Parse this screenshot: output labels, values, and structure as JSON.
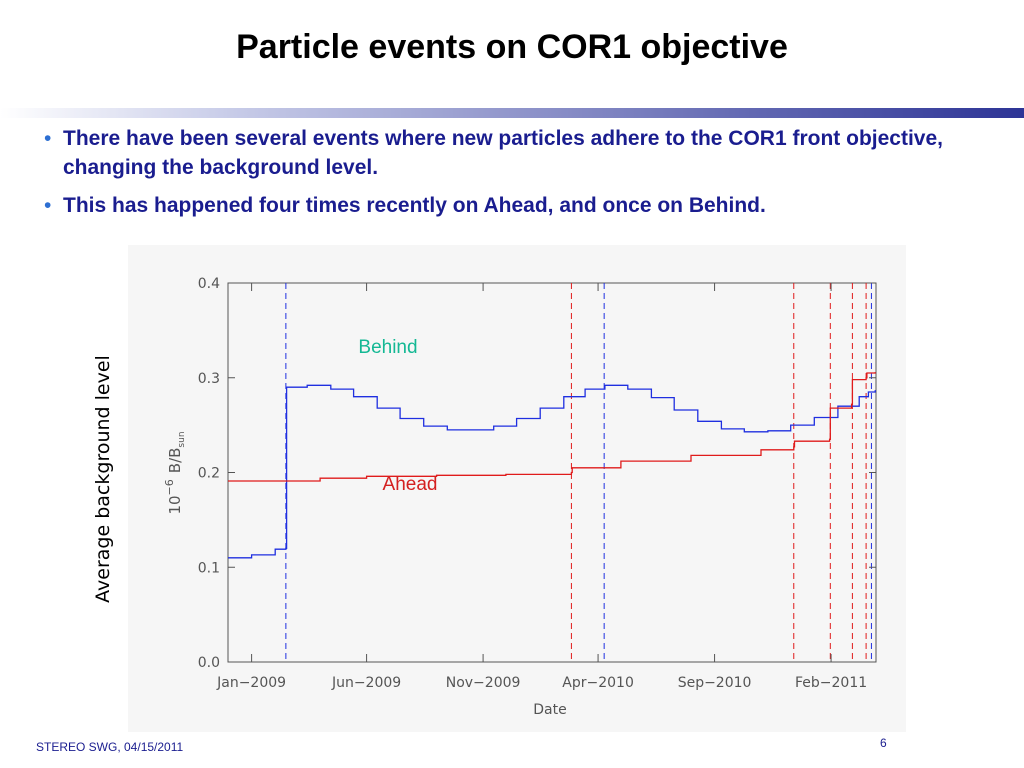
{
  "slide": {
    "title": "Particle events on COR1 objective",
    "bullets": [
      "There have been several events where new particles adhere to the COR1 front objective, changing the background level.",
      "This has happened four times recently on Ahead, and once on Behind."
    ],
    "bullet_glyph": "•",
    "footer": "STEREO SWG, 04/15/2011",
    "page_number": "6",
    "outer_ylabel": "Average background level"
  },
  "colors": {
    "title": "#000000",
    "bullet_text": "#1a1d8f",
    "behind": "#1f2fe0",
    "ahead": "#e01b1b",
    "behind_label": "#14b894",
    "ahead_label": "#d42020"
  },
  "chart_data": {
    "type": "line",
    "xlabel": "Date",
    "ylabel_prefix": "10",
    "ylabel_exponent": "−6",
    "ylabel_main": "B/B",
    "ylabel_sub": "sun",
    "xlim": [
      "2008-12-01",
      "2011-04-01"
    ],
    "ylim": [
      0.0,
      0.4
    ],
    "x_ticks": [
      {
        "date": "2009-01-01",
        "label": "Jan−2009"
      },
      {
        "date": "2009-06-01",
        "label": "Jun−2009"
      },
      {
        "date": "2009-11-01",
        "label": "Nov−2009"
      },
      {
        "date": "2010-04-01",
        "label": "Apr−2010"
      },
      {
        "date": "2010-09-01",
        "label": "Sep−2010"
      },
      {
        "date": "2011-02-01",
        "label": "Feb−2011"
      }
    ],
    "y_ticks": [
      {
        "value": 0.0,
        "label": "0.0"
      },
      {
        "value": 0.1,
        "label": "0.1"
      },
      {
        "value": 0.2,
        "label": "0.2"
      },
      {
        "value": 0.3,
        "label": "0.3"
      },
      {
        "value": 0.4,
        "label": "0.4"
      }
    ],
    "grid": false,
    "series": [
      {
        "name": "Behind",
        "label": "Behind",
        "points": [
          [
            "2008-12-01",
            0.11
          ],
          [
            "2009-01-01",
            0.113
          ],
          [
            "2009-02-01",
            0.119
          ],
          [
            "2009-02-15",
            0.12
          ],
          [
            "2009-02-16",
            0.29
          ],
          [
            "2009-03-15",
            0.292
          ],
          [
            "2009-04-15",
            0.288
          ],
          [
            "2009-05-15",
            0.28
          ],
          [
            "2009-06-15",
            0.268
          ],
          [
            "2009-07-15",
            0.257
          ],
          [
            "2009-08-15",
            0.249
          ],
          [
            "2009-09-15",
            0.245
          ],
          [
            "2009-10-15",
            0.245
          ],
          [
            "2009-11-15",
            0.249
          ],
          [
            "2009-12-15",
            0.257
          ],
          [
            "2010-01-15",
            0.268
          ],
          [
            "2010-02-15",
            0.28
          ],
          [
            "2010-03-15",
            0.288
          ],
          [
            "2010-04-10",
            0.292
          ],
          [
            "2010-05-10",
            0.288
          ],
          [
            "2010-06-10",
            0.279
          ],
          [
            "2010-07-10",
            0.266
          ],
          [
            "2010-08-10",
            0.254
          ],
          [
            "2010-09-10",
            0.246
          ],
          [
            "2010-10-10",
            0.243
          ],
          [
            "2010-11-10",
            0.244
          ],
          [
            "2010-12-10",
            0.25
          ],
          [
            "2011-01-10",
            0.258
          ],
          [
            "2011-02-10",
            0.27
          ],
          [
            "2011-03-10",
            0.28
          ],
          [
            "2011-03-22",
            0.285
          ],
          [
            "2011-03-31",
            0.287
          ]
        ]
      },
      {
        "name": "Ahead",
        "label": "Ahead",
        "points": [
          [
            "2008-12-01",
            0.191
          ],
          [
            "2009-02-01",
            0.191
          ],
          [
            "2009-04-01",
            0.194
          ],
          [
            "2009-06-01",
            0.196
          ],
          [
            "2009-09-01",
            0.197
          ],
          [
            "2009-12-01",
            0.198
          ],
          [
            "2010-02-25",
            0.2
          ],
          [
            "2010-02-26",
            0.205
          ],
          [
            "2010-05-01",
            0.212
          ],
          [
            "2010-08-01",
            0.218
          ],
          [
            "2010-11-01",
            0.224
          ],
          [
            "2010-12-14",
            0.227
          ],
          [
            "2010-12-15",
            0.233
          ],
          [
            "2011-01-30",
            0.235
          ],
          [
            "2011-01-31",
            0.268
          ],
          [
            "2011-02-28",
            0.272
          ],
          [
            "2011-03-01",
            0.298
          ],
          [
            "2011-03-19",
            0.3
          ],
          [
            "2011-03-20",
            0.305
          ],
          [
            "2011-03-31",
            0.306
          ]
        ]
      }
    ],
    "event_lines": [
      {
        "series": "Behind",
        "date": "2009-02-15"
      },
      {
        "series": "Behind",
        "date": "2010-04-09"
      },
      {
        "series": "Behind",
        "date": "2011-03-26"
      },
      {
        "series": "Ahead",
        "date": "2010-02-25"
      },
      {
        "series": "Ahead",
        "date": "2010-12-14"
      },
      {
        "series": "Ahead",
        "date": "2011-01-31"
      },
      {
        "series": "Ahead",
        "date": "2011-03-01"
      },
      {
        "series": "Ahead",
        "date": "2011-03-19"
      }
    ]
  }
}
